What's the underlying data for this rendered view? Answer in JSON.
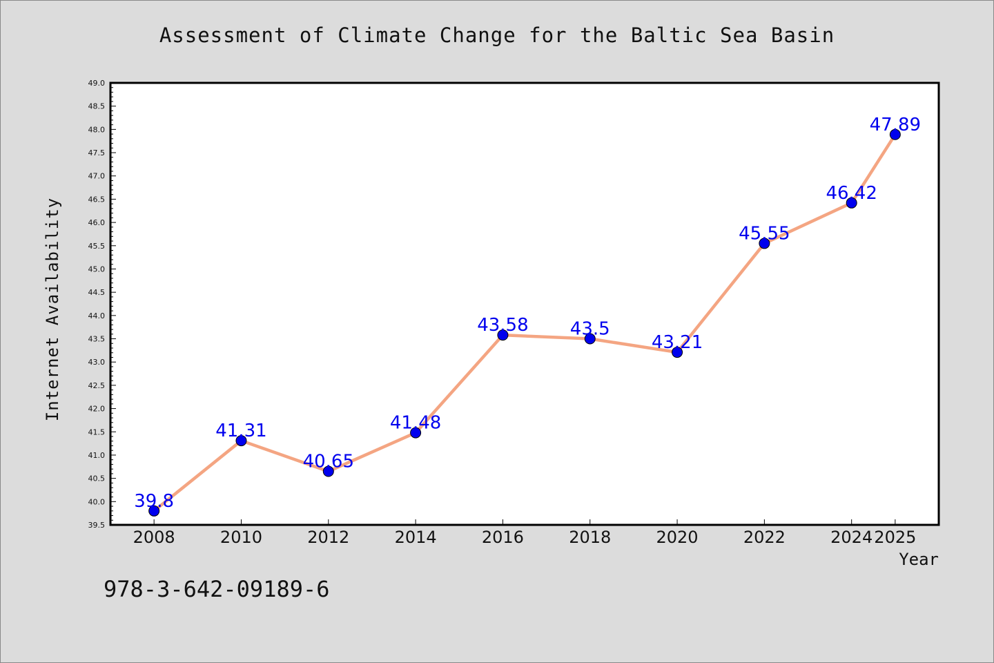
{
  "chart_data": {
    "type": "line",
    "title": "Assessment of Climate Change for the Baltic Sea Basin",
    "xlabel": "Year",
    "ylabel": "Internet Availability",
    "x": [
      2008,
      2010,
      2012,
      2014,
      2016,
      2018,
      2020,
      2022,
      2024,
      2025
    ],
    "x_tick_labels": [
      "2008",
      "2010",
      "2012",
      "2014",
      "2016",
      "2018",
      "2020",
      "2022",
      "2024",
      "2025"
    ],
    "series": [
      {
        "values": [
          39.8,
          41.31,
          40.65,
          41.48,
          43.58,
          43.5,
          43.21,
          45.55,
          46.42,
          47.89
        ],
        "data_labels": [
          "39.8",
          "41.31",
          "40.65",
          "41.48",
          "43.58",
          "43.5",
          "43.21",
          "45.55",
          "46.42",
          "47.89"
        ]
      }
    ],
    "ylim": [
      39.5,
      49.0
    ],
    "y_major_step": 0.5,
    "y_minor_step": 0.1,
    "grid": false,
    "line_color": "#f4a582",
    "marker_color": "#0000ee",
    "label_color": "#0000ee",
    "plot_background": "#ffffff",
    "page_background": "#dcdcdc"
  },
  "footer": {
    "isbn": "978-3-642-09189-6"
  }
}
